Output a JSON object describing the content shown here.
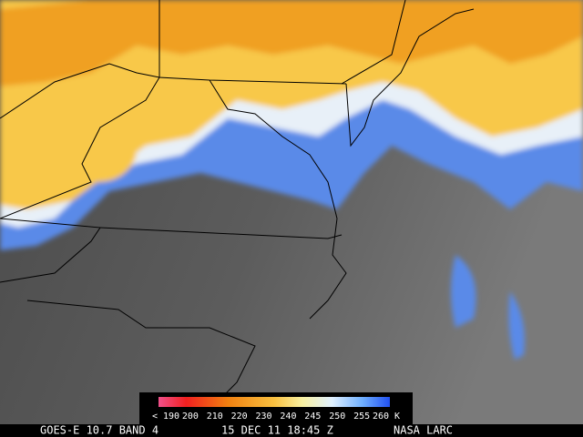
{
  "legend": {
    "labels": [
      "< 190",
      "200",
      "210",
      "220",
      "230",
      "240",
      "245",
      "250",
      "255",
      "260 K"
    ]
  },
  "footer": {
    "satellite": "GOES-E 10.7 BAND 4",
    "datetime": "15 DEC 11 18:45 Z",
    "credit": "NASA LARC"
  }
}
